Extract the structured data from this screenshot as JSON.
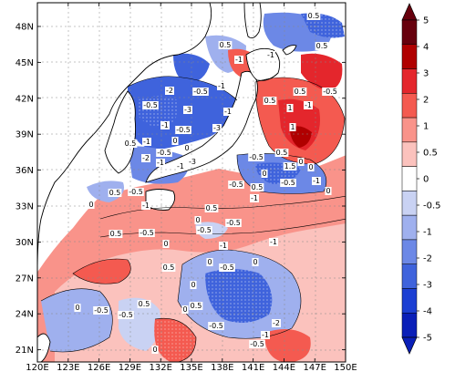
{
  "map": {
    "lon_labels": [
      "120E",
      "123E",
      "126E",
      "129E",
      "132E",
      "135E",
      "138E",
      "141E",
      "144E",
      "147E",
      "150E"
    ],
    "lat_labels": [
      "48N",
      "45N",
      "42N",
      "39N",
      "36N",
      "33N",
      "30N",
      "27N",
      "24N",
      "21N"
    ]
  },
  "colorbar": {
    "labels": [
      "5",
      "4",
      "3",
      "2",
      "1",
      "0.5",
      "0",
      "-0.5",
      "-1",
      "-2",
      "-3",
      "-4",
      "-5"
    ],
    "colors": [
      "#67000d",
      "#b00000",
      "#e4262c",
      "#f45a50",
      "#f9938a",
      "#fbc2bd",
      "#ffffff",
      "#c9d2f3",
      "#9fb0ee",
      "#6c88e6",
      "#3f63dc",
      "#1c3fd3",
      "#0a1fb8"
    ]
  },
  "contour_labels": [
    {
      "text": "0.5"
    },
    {
      "text": "-1"
    },
    {
      "text": "0.5"
    },
    {
      "text": "-1"
    },
    {
      "text": "0.5"
    },
    {
      "text": "-0.5"
    },
    {
      "text": "-1"
    },
    {
      "text": "-2"
    },
    {
      "text": "-3"
    },
    {
      "text": "-1"
    },
    {
      "text": "-0.5"
    },
    {
      "text": "-1"
    },
    {
      "text": "-3"
    },
    {
      "text": "-0.5"
    },
    {
      "text": "-1"
    },
    {
      "text": "0"
    },
    {
      "text": "0.5"
    },
    {
      "text": "-0.5"
    },
    {
      "text": "0"
    },
    {
      "text": "-3"
    },
    {
      "text": "-1"
    },
    {
      "text": "-2"
    },
    {
      "text": "-1"
    },
    {
      "text": "0.5"
    },
    {
      "text": "1"
    },
    {
      "text": "-1"
    },
    {
      "text": "-0.5"
    },
    {
      "text": "0.5"
    },
    {
      "text": "1"
    },
    {
      "text": "0.5"
    },
    {
      "text": "0"
    },
    {
      "text": "-0.5"
    },
    {
      "text": "1.5"
    },
    {
      "text": "0"
    },
    {
      "text": "-1"
    },
    {
      "text": "0"
    },
    {
      "text": "0.5"
    },
    {
      "text": "-0.5"
    },
    {
      "text": "0"
    },
    {
      "text": "-0.5"
    },
    {
      "text": "-1"
    },
    {
      "text": "0.5"
    },
    {
      "text": "-0.5"
    },
    {
      "text": "-1"
    },
    {
      "text": "0"
    },
    {
      "text": "0.5"
    },
    {
      "text": "-0.5"
    },
    {
      "text": "0"
    },
    {
      "text": "-0.5"
    },
    {
      "text": "-1"
    },
    {
      "text": "0.5"
    },
    {
      "text": "0"
    },
    {
      "text": "-0.5"
    },
    {
      "text": "-1"
    },
    {
      "text": "0"
    },
    {
      "text": "0"
    },
    {
      "text": "-0.5"
    },
    {
      "text": "0.5"
    },
    {
      "text": "0"
    },
    {
      "text": "0.5"
    },
    {
      "text": "-0.5"
    },
    {
      "text": "0"
    },
    {
      "text": "-0.5"
    },
    {
      "text": "-2"
    },
    {
      "text": "-1"
    },
    {
      "text": "-0.5"
    },
    {
      "text": "0"
    },
    {
      "text": "-0.5"
    },
    {
      "text": "0.5"
    },
    {
      "text": "0"
    }
  ]
}
